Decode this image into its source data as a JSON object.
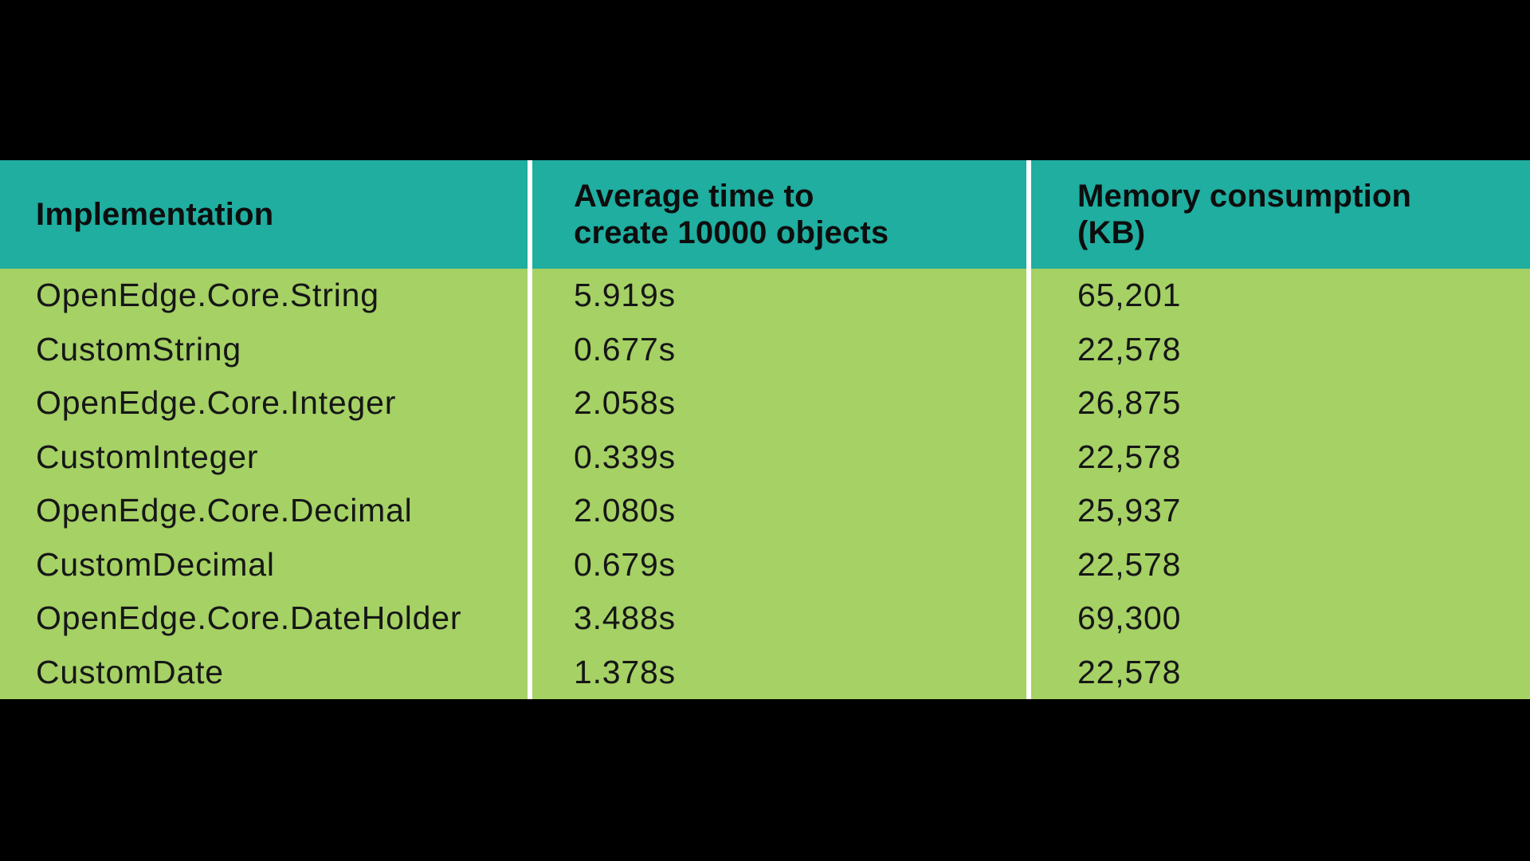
{
  "chart_data": {
    "type": "table",
    "title": "",
    "columns": [
      "Implementation",
      "Average time to create 10000 objects",
      "Memory consumption (KB)"
    ],
    "rows": [
      [
        "OpenEdge.Core.String",
        "5.919s",
        "65,201"
      ],
      [
        "CustomString",
        "0.677s",
        "22,578"
      ],
      [
        "OpenEdge.Core.Integer",
        "2.058s",
        "26,875"
      ],
      [
        "CustomInteger",
        "0.339s",
        "22,578"
      ],
      [
        "OpenEdge.Core.Decimal",
        "2.080s",
        "25,937"
      ],
      [
        "CustomDecimal",
        "0.679s",
        "22,578"
      ],
      [
        "OpenEdge.Core.DateHolder",
        "3.488s",
        "69,300"
      ],
      [
        "CustomDate",
        "1.378s",
        "22,578"
      ]
    ]
  },
  "table": {
    "header": [
      {
        "line1": "Implementation",
        "line2": ""
      },
      {
        "line1": "Average time to",
        "line2": "create 10000 objects"
      },
      {
        "line1": "Memory consumption",
        "line2": "(KB)"
      }
    ],
    "rows": [
      {
        "implementation": "OpenEdge.Core.String",
        "avg_time": "5.919s",
        "memory_kb": "65,201"
      },
      {
        "implementation": "CustomString",
        "avg_time": "0.677s",
        "memory_kb": "22,578"
      },
      {
        "implementation": "OpenEdge.Core.Integer",
        "avg_time": "2.058s",
        "memory_kb": "26,875"
      },
      {
        "implementation": "CustomInteger",
        "avg_time": "0.339s",
        "memory_kb": "22,578"
      },
      {
        "implementation": "OpenEdge.Core.Decimal",
        "avg_time": "2.080s",
        "memory_kb": "25,937"
      },
      {
        "implementation": "CustomDecimal",
        "avg_time": "0.679s",
        "memory_kb": "22,578"
      },
      {
        "implementation": "OpenEdge.Core.DateHolder",
        "avg_time": "3.488s",
        "memory_kb": "69,300"
      },
      {
        "implementation": "CustomDate",
        "avg_time": "1.378s",
        "memory_kb": "22,578"
      }
    ]
  },
  "colors": {
    "header_bg": "#1FAEA0",
    "row_bg": "#A5D165",
    "divider": "#FFFFFF",
    "background": "#000000",
    "header_text": "#0D0D0D",
    "body_text": "#161616"
  }
}
